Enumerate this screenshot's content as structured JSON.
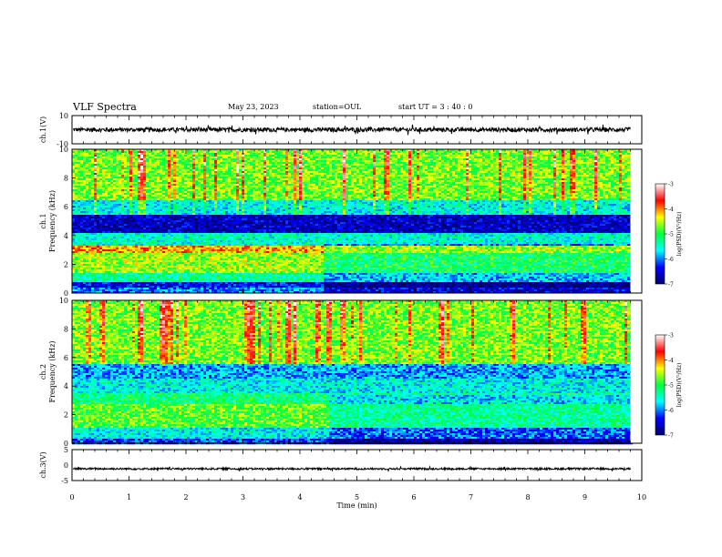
{
  "header": {
    "title": "VLF Spectra",
    "date": "May 23, 2023",
    "station": "station=OUL",
    "start": "start  UT  =   3  : 40 : 0"
  },
  "chart_data": [
    {
      "type": "line",
      "name": "ch.1 waveform",
      "ylabel": "ch.1(V)",
      "ylim": [
        -10,
        10
      ],
      "yticks": [
        "10",
        "-10"
      ],
      "xlim": [
        0,
        10
      ],
      "trace_level": 0,
      "trace_amplitude": 1.5,
      "color": "#000000"
    },
    {
      "type": "heatmap",
      "name": "ch.1 spectrogram",
      "ylabel": "ch.1\nFrequency (kHz)",
      "ylim": [
        0,
        10
      ],
      "yticks": [
        "0",
        "2",
        "4",
        "6",
        "8",
        "10"
      ],
      "xlim": [
        0,
        9.8
      ],
      "colorbar": {
        "label": "log(PSD)(V²/Hz)",
        "range": [
          -7,
          -3
        ],
        "ticks": [
          "-3",
          "-4",
          "-5",
          "-6",
          "-7"
        ],
        "colors": [
          "#00006a",
          "#0000ff",
          "#00ffff",
          "#00ff40",
          "#ffff00",
          "#ff0000",
          "#ffffff"
        ]
      },
      "bands": [
        {
          "f": [
            0.0,
            0.4
          ],
          "level": -6.0
        },
        {
          "f": [
            0.4,
            0.8
          ],
          "level": -6.4
        },
        {
          "f": [
            0.8,
            1.4
          ],
          "level": -5.3
        },
        {
          "f": [
            1.4,
            2.8
          ],
          "level": -4.6
        },
        {
          "f": [
            2.8,
            3.3
          ],
          "level": -4.1
        },
        {
          "f": [
            3.3,
            4.2
          ],
          "level": -5.5
        },
        {
          "f": [
            4.2,
            5.5
          ],
          "level": -6.6
        },
        {
          "f": [
            5.5,
            6.5
          ],
          "level": -5.6
        },
        {
          "f": [
            6.5,
            10.0
          ],
          "level": -4.7
        }
      ],
      "transition_time_min": 4.4
    },
    {
      "type": "heatmap",
      "name": "ch.2 spectrogram",
      "ylabel": "ch.2\nFrequency (kHz)",
      "ylim": [
        0,
        10
      ],
      "yticks": [
        "0",
        "2",
        "4",
        "6",
        "8",
        "10"
      ],
      "xlim": [
        0,
        9.8
      ],
      "colorbar": {
        "label": "log(PSD)(V²/Hz)",
        "range": [
          -7,
          -3
        ],
        "ticks": [
          "-3",
          "-4",
          "-5",
          "-6",
          "-7"
        ],
        "colors": [
          "#00006a",
          "#0000ff",
          "#00ffff",
          "#00ff40",
          "#ffff00",
          "#ff0000",
          "#ffffff"
        ]
      },
      "bands": [
        {
          "f": [
            0.0,
            0.4
          ],
          "level": -6.2
        },
        {
          "f": [
            0.4,
            1.2
          ],
          "level": -5.6
        },
        {
          "f": [
            1.2,
            2.8
          ],
          "level": -4.8
        },
        {
          "f": [
            2.8,
            3.6
          ],
          "level": -5.2
        },
        {
          "f": [
            3.6,
            4.6
          ],
          "level": -5.6
        },
        {
          "f": [
            4.6,
            5.6
          ],
          "level": -5.9
        },
        {
          "f": [
            5.6,
            10.0
          ],
          "level": -4.7
        }
      ],
      "transition_time_min": 4.5
    },
    {
      "type": "line",
      "name": "ch.3 waveform",
      "ylabel": "ch.3(V)",
      "ylim": [
        -5,
        5
      ],
      "yticks": [
        "5",
        "0",
        "-5"
      ],
      "xlim": [
        0,
        10
      ],
      "trace_level": -1.2,
      "trace_amplitude": 0.3,
      "color": "#000000"
    }
  ],
  "xaxis": {
    "label": "Time (min)",
    "ticks": [
      "0",
      "1",
      "2",
      "3",
      "4",
      "5",
      "6",
      "7",
      "8",
      "9",
      "10"
    ]
  }
}
